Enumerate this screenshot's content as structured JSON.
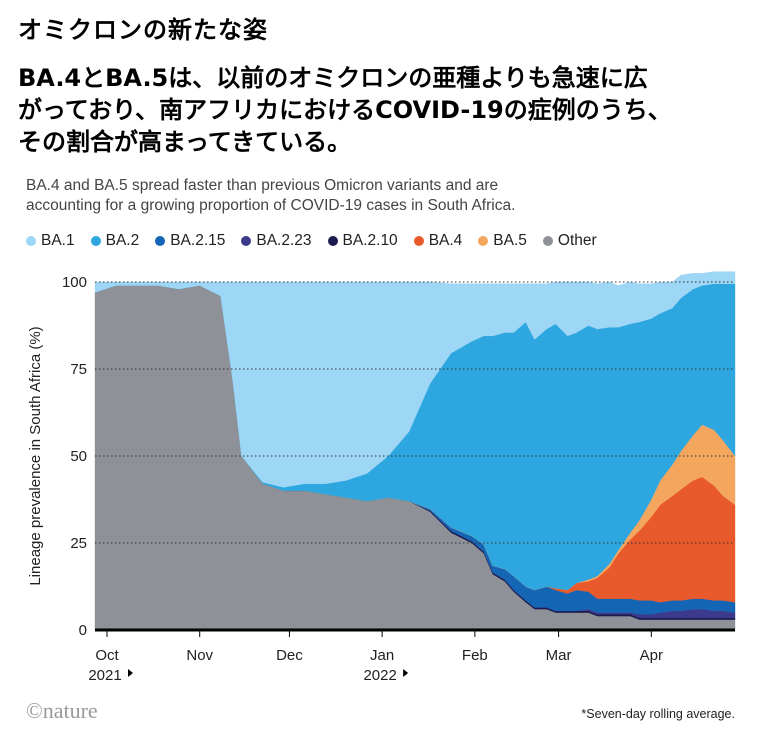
{
  "title_jp": "オミクロンの新たな姿",
  "subtitle_jp": [
    "BA.4とBA.5は、以前のオミクロンの亜種よりも急速に広",
    "がっており、南アフリカにおけるCOVID-19の症例のうち、",
    "その割合が高まってきている。"
  ],
  "subtitle_en": [
    "BA.4 and BA.5 spread faster than previous Omicron variants and are",
    "accounting for a growing proportion of COVID-19 cases in South Africa."
  ],
  "footer": {
    "logo": "©nature",
    "note": "*Seven-day rolling average."
  },
  "chart_data": {
    "type": "area",
    "stacked": true,
    "ylabel": "Lineage prevalence in South Africa (%)",
    "ylim": [
      0,
      100
    ],
    "yticks": [
      0,
      25,
      50,
      75,
      100
    ],
    "grid": "dotted horizontal",
    "legend_position": "top",
    "x_unit": "days since 2021-10-01",
    "xticks": [
      {
        "day": 0,
        "label": "Oct",
        "year": "2021"
      },
      {
        "day": 31,
        "label": "Nov",
        "year": ""
      },
      {
        "day": 61,
        "label": "Dec",
        "year": ""
      },
      {
        "day": 92,
        "label": "Jan",
        "year": "2022"
      },
      {
        "day": 123,
        "label": "Feb",
        "year": ""
      },
      {
        "day": 151,
        "label": "Mar",
        "year": ""
      },
      {
        "day": 182,
        "label": "Apr",
        "year": ""
      }
    ],
    "x": [
      0,
      7,
      14,
      21,
      28,
      35,
      42,
      46,
      49,
      56,
      63,
      70,
      77,
      84,
      91,
      98,
      105,
      112,
      119,
      126,
      130,
      133,
      137,
      140,
      144,
      147,
      151,
      154,
      158,
      161,
      165,
      168,
      172,
      175,
      179,
      182,
      186,
      189,
      193,
      196,
      200,
      203,
      207,
      210,
      214
    ],
    "series": [
      {
        "name": "Other",
        "color": "#8e9298",
        "values": [
          97,
          99,
          99,
          99,
          98,
          99,
          96,
          72,
          50,
          42,
          40,
          40,
          39,
          38,
          37,
          38,
          37,
          34,
          28,
          25,
          22,
          16,
          14,
          11,
          8,
          6,
          6,
          5,
          5,
          5,
          5,
          4,
          4,
          4,
          4,
          3,
          3,
          3,
          3,
          3,
          3,
          3,
          3,
          3,
          3
        ]
      },
      {
        "name": "BA.2.10",
        "color": "#1b1a4f",
        "values": [
          0,
          0,
          0,
          0,
          0,
          0,
          0,
          0,
          0,
          0,
          0,
          0,
          0,
          0,
          0,
          0,
          0,
          0.3,
          0.5,
          0.5,
          0.5,
          0.5,
          0.5,
          0.5,
          0.5,
          0.5,
          0.5,
          0.5,
          0.5,
          0.5,
          0.5,
          0.5,
          0.5,
          0.5,
          0.5,
          0.5,
          0.5,
          0.5,
          0.5,
          0.5,
          0.5,
          0.5,
          0.5,
          0.5,
          0.5
        ]
      },
      {
        "name": "BA.2.23",
        "color": "#3b3a8c",
        "values": [
          0,
          0,
          0,
          0,
          0,
          0,
          0,
          0,
          0,
          0,
          0,
          0,
          0,
          0,
          0,
          0,
          0,
          0,
          0,
          0,
          0,
          0,
          0,
          0,
          0,
          0,
          0,
          0,
          0,
          0,
          0.5,
          0.5,
          0.5,
          0.5,
          0.5,
          1,
          1,
          1.5,
          2,
          2,
          2.5,
          2.5,
          2,
          2,
          1.5
        ]
      },
      {
        "name": "BA.2.15",
        "color": "#1565b5",
        "values": [
          0,
          0,
          0,
          0,
          0,
          0,
          0,
          0,
          0,
          0,
          0,
          0,
          0,
          0,
          0,
          0,
          0,
          0.5,
          1,
          1.5,
          2,
          2,
          3,
          4,
          4,
          5,
          6,
          6,
          5,
          6,
          5,
          4,
          4,
          4,
          4,
          4,
          4,
          3,
          3,
          3,
          3,
          3,
          3,
          3,
          3
        ]
      },
      {
        "name": "BA.4",
        "color": "#e8592b",
        "values": [
          0,
          0,
          0,
          0,
          0,
          0,
          0,
          0,
          0,
          0,
          0,
          0,
          0,
          0,
          0,
          0,
          0,
          0,
          0,
          0,
          0,
          0,
          0,
          0,
          0,
          0,
          0,
          0.5,
          1,
          2,
          3,
          6,
          9,
          13,
          17,
          20,
          24,
          28,
          30,
          32,
          34,
          35,
          33,
          30,
          28
        ]
      },
      {
        "name": "BA.5",
        "color": "#f4a65f",
        "values": [
          0,
          0,
          0,
          0,
          0,
          0,
          0,
          0,
          0,
          0,
          0,
          0,
          0,
          0,
          0,
          0,
          0,
          0,
          0,
          0,
          0,
          0,
          0,
          0,
          0,
          0,
          0,
          0,
          0,
          0,
          0.5,
          0.5,
          1,
          1,
          2,
          3,
          5,
          7,
          9,
          11,
          13,
          15,
          16,
          16,
          14
        ]
      },
      {
        "name": "BA.2",
        "color": "#2ea7e0",
        "values": [
          0,
          0,
          0,
          0,
          0,
          0,
          0,
          0,
          0,
          0.5,
          1,
          2,
          3,
          5,
          8,
          12,
          20,
          36,
          50,
          56,
          60,
          66,
          68,
          70,
          76,
          72,
          74,
          76,
          73,
          72,
          73,
          71,
          68,
          64,
          60,
          57,
          52,
          48,
          45,
          44,
          42,
          40,
          42,
          45,
          49.5
        ]
      },
      {
        "name": "BA.1",
        "color": "#9ed6f5",
        "values": [
          3,
          1,
          1,
          1,
          2,
          1,
          4,
          28,
          50,
          57.5,
          59,
          58,
          58,
          57,
          55,
          50,
          43,
          29.2,
          20,
          16.5,
          15,
          15,
          14,
          14,
          11,
          16,
          13,
          12,
          15.5,
          14.5,
          12.5,
          13,
          13,
          12,
          12,
          11,
          10,
          9,
          7.5,
          6.5,
          4.5,
          3.5,
          3.5,
          3.5,
          3.5
        ]
      }
    ]
  }
}
